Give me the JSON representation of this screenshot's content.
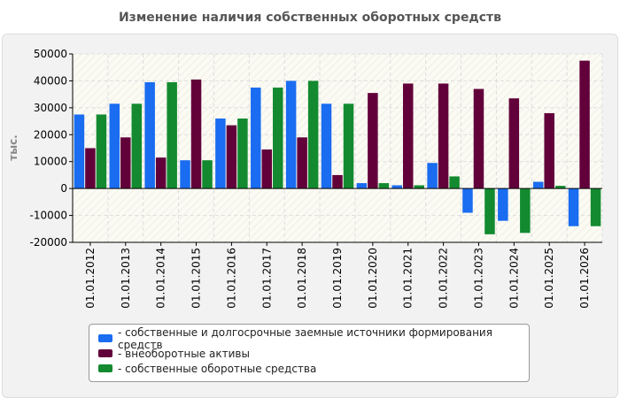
{
  "chart_data": {
    "type": "bar",
    "title": "Изменение наличия собственных оборотных средств",
    "ylabel": "тыс.",
    "xlabel": "",
    "ylim": [
      -20000,
      50000
    ],
    "yticks": [
      -20000,
      -10000,
      0,
      10000,
      20000,
      30000,
      40000,
      50000
    ],
    "grid": true,
    "legend_position": "bottom",
    "categories": [
      "01.01.2012",
      "01.01.2013",
      "01.01.2014",
      "01.01.2015",
      "01.01.2016",
      "01.01.2017",
      "01.01.2018",
      "01.01.2019",
      "01.01.2020",
      "01.01.2021",
      "01.01.2022",
      "01.01.2023",
      "01.01.2024",
      "01.01.2025",
      "01.01.2026"
    ],
    "series": [
      {
        "name": "- собственные и долгосрочные заемные источники формирования средств",
        "color": "#1a6cf0",
        "values": [
          27500,
          31500,
          39500,
          10500,
          26000,
          37500,
          40000,
          31500,
          2000,
          1200,
          9500,
          -9000,
          -12000,
          2500,
          -14000
        ]
      },
      {
        "name": "- внеоборотные активы",
        "color": "#62003a",
        "values": [
          15000,
          19000,
          11500,
          40500,
          23500,
          14500,
          19000,
          5000,
          35500,
          39000,
          39000,
          37000,
          33500,
          28000,
          47500
        ]
      },
      {
        "name": "- собственные оборотные средства",
        "color": "#138a2f",
        "values": [
          27500,
          31500,
          39500,
          10500,
          26000,
          37500,
          40000,
          31500,
          2000,
          1200,
          4500,
          -17000,
          -16500,
          1000,
          -14000
        ]
      }
    ]
  }
}
